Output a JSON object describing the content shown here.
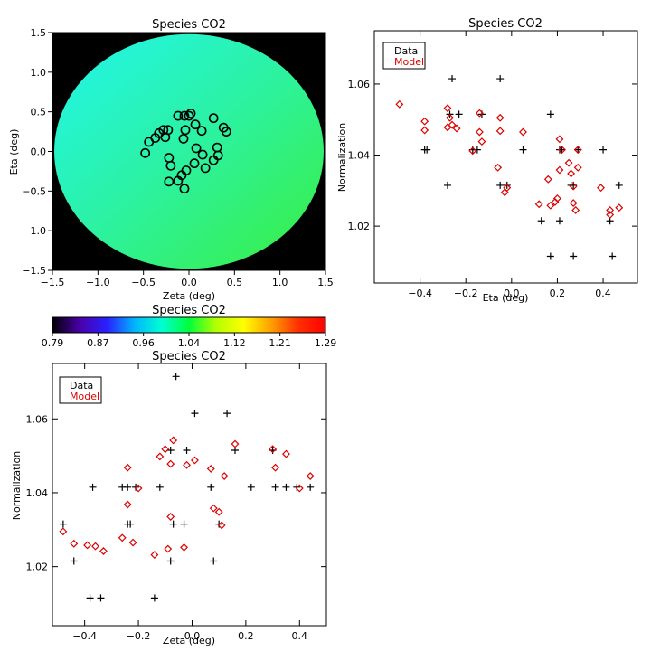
{
  "colors": {
    "data": "#000000",
    "model": "#dd0000",
    "background": "#000000"
  },
  "chart_data": [
    {
      "id": "map",
      "type": "heatmap",
      "title": "Species CO2",
      "xlabel": "Zeta (deg)",
      "ylabel": "Eta (deg)",
      "xlim": [
        -1.5,
        1.5
      ],
      "ylim": [
        -1.5,
        1.5
      ],
      "xticks": [
        "−1.5",
        "−1.0",
        "−0.5",
        "0.0",
        "0.5",
        "1.0",
        "1.5"
      ],
      "yticks": [
        "−1.5",
        "−1.0",
        "−0.5",
        "0.0",
        "0.5",
        "1.0",
        "1.5"
      ],
      "field_of_view_radius_deg": 1.48,
      "gradient_colors": [
        "#21f5ee",
        "#2cf2a0",
        "#3aee3e"
      ],
      "points": [
        {
          "x": -0.48,
          "y": -0.02
        },
        {
          "x": -0.44,
          "y": 0.12
        },
        {
          "x": -0.37,
          "y": 0.17
        },
        {
          "x": -0.33,
          "y": 0.23
        },
        {
          "x": -0.28,
          "y": 0.27
        },
        {
          "x": -0.23,
          "y": 0.27
        },
        {
          "x": -0.26,
          "y": 0.18
        },
        {
          "x": -0.22,
          "y": -0.08
        },
        {
          "x": -0.2,
          "y": -0.18
        },
        {
          "x": -0.22,
          "y": -0.38
        },
        {
          "x": -0.12,
          "y": -0.37
        },
        {
          "x": -0.05,
          "y": -0.47
        },
        {
          "x": -0.08,
          "y": -0.3
        },
        {
          "x": -0.03,
          "y": -0.24
        },
        {
          "x": 0.06,
          "y": -0.15
        },
        {
          "x": 0.08,
          "y": 0.04
        },
        {
          "x": 0.15,
          "y": -0.04
        },
        {
          "x": 0.18,
          "y": -0.21
        },
        {
          "x": 0.27,
          "y": -0.11
        },
        {
          "x": 0.32,
          "y": -0.05
        },
        {
          "x": 0.31,
          "y": 0.05
        },
        {
          "x": 0.38,
          "y": 0.3
        },
        {
          "x": 0.41,
          "y": 0.25
        },
        {
          "x": 0.27,
          "y": 0.42
        },
        {
          "x": 0.14,
          "y": 0.26
        },
        {
          "x": 0.07,
          "y": 0.34
        },
        {
          "x": -0.06,
          "y": 0.16
        },
        {
          "x": -0.04,
          "y": 0.27
        },
        {
          "x": -0.12,
          "y": 0.45
        },
        {
          "x": -0.05,
          "y": 0.45
        },
        {
          "x": 0.02,
          "y": 0.48
        },
        {
          "x": 0.0,
          "y": 0.45
        }
      ]
    },
    {
      "id": "colorbar",
      "type": "colorbar",
      "title": "Species CO2",
      "range": [
        0.79,
        1.29
      ],
      "tick_labels": [
        "0.79",
        "0.87",
        "0.96",
        "1.04",
        "1.12",
        "1.21",
        "1.29"
      ],
      "colormap": [
        "#000000",
        "#4a00a8",
        "#2a20ff",
        "#00b4ff",
        "#00ffd2",
        "#00ff3c",
        "#b4ff00",
        "#ffff00",
        "#ffa000",
        "#ff3000",
        "#ff0000"
      ]
    },
    {
      "id": "eta",
      "type": "scatter",
      "title": "Species CO2",
      "xlabel": "Eta (deg)",
      "ylabel": "Normalization",
      "xlim": [
        -0.6,
        0.55
      ],
      "ylim": [
        1.004,
        1.075
      ],
      "xticks": [
        -0.4,
        -0.2,
        0.0,
        0.2,
        0.4
      ],
      "xtick_labels": [
        "−0.4",
        "−0.2",
        "0.0",
        "0.2",
        "0.4"
      ],
      "yticks": [
        1.02,
        1.04,
        1.06
      ],
      "ytick_labels": [
        "1.02",
        "1.04",
        "1.06"
      ],
      "legend": [
        "Data",
        "Model"
      ],
      "legend_position": "top-left",
      "series": [
        {
          "name": "Data",
          "marker": "plus",
          "points": [
            {
              "x": -0.38,
              "y": 1.0415
            },
            {
              "x": -0.37,
              "y": 1.0415
            },
            {
              "x": -0.27,
              "y": 1.0515
            },
            {
              "x": -0.28,
              "y": 1.0315
            },
            {
              "x": -0.26,
              "y": 1.0615
            },
            {
              "x": -0.23,
              "y": 1.0515
            },
            {
              "x": -0.17,
              "y": 1.0415
            },
            {
              "x": -0.15,
              "y": 1.0415
            },
            {
              "x": -0.13,
              "y": 1.0515
            },
            {
              "x": -0.05,
              "y": 1.0615
            },
            {
              "x": -0.05,
              "y": 1.0315
            },
            {
              "x": -0.02,
              "y": 1.0315
            },
            {
              "x": 0.05,
              "y": 1.0415
            },
            {
              "x": 0.13,
              "y": 1.0215
            },
            {
              "x": 0.17,
              "y": 1.0515
            },
            {
              "x": 0.17,
              "y": 1.0115
            },
            {
              "x": 0.21,
              "y": 1.0415
            },
            {
              "x": 0.21,
              "y": 1.0215
            },
            {
              "x": 0.22,
              "y": 1.0415
            },
            {
              "x": 0.26,
              "y": 1.0315
            },
            {
              "x": 0.27,
              "y": 1.0315
            },
            {
              "x": 0.27,
              "y": 1.0115
            },
            {
              "x": 0.29,
              "y": 1.0415
            },
            {
              "x": 0.4,
              "y": 1.0415
            },
            {
              "x": 0.43,
              "y": 1.0215
            },
            {
              "x": 0.44,
              "y": 1.0115
            },
            {
              "x": 0.47,
              "y": 1.0315
            }
          ]
        },
        {
          "name": "Model",
          "marker": "diamond",
          "points": [
            {
              "x": -0.49,
              "y": 1.0543
            },
            {
              "x": -0.38,
              "y": 1.0495
            },
            {
              "x": -0.38,
              "y": 1.047
            },
            {
              "x": -0.28,
              "y": 1.0532
            },
            {
              "x": -0.28,
              "y": 1.0478
            },
            {
              "x": -0.27,
              "y": 1.0505
            },
            {
              "x": -0.26,
              "y": 1.0485
            },
            {
              "x": -0.24,
              "y": 1.0475
            },
            {
              "x": -0.17,
              "y": 1.0412
            },
            {
              "x": -0.14,
              "y": 1.0518
            },
            {
              "x": -0.14,
              "y": 1.0465
            },
            {
              "x": -0.13,
              "y": 1.0438
            },
            {
              "x": -0.05,
              "y": 1.0505
            },
            {
              "x": -0.05,
              "y": 1.0468
            },
            {
              "x": -0.06,
              "y": 1.0365
            },
            {
              "x": -0.03,
              "y": 1.0295
            },
            {
              "x": -0.02,
              "y": 1.0308
            },
            {
              "x": 0.05,
              "y": 1.0465
            },
            {
              "x": 0.12,
              "y": 1.0262
            },
            {
              "x": 0.16,
              "y": 1.0332
            },
            {
              "x": 0.17,
              "y": 1.0258
            },
            {
              "x": 0.19,
              "y": 1.0268
            },
            {
              "x": 0.2,
              "y": 1.0278
            },
            {
              "x": 0.21,
              "y": 1.0445
            },
            {
              "x": 0.21,
              "y": 1.0358
            },
            {
              "x": 0.22,
              "y": 1.0415
            },
            {
              "x": 0.25,
              "y": 1.0378
            },
            {
              "x": 0.26,
              "y": 1.0348
            },
            {
              "x": 0.27,
              "y": 1.0312
            },
            {
              "x": 0.27,
              "y": 1.0265
            },
            {
              "x": 0.28,
              "y": 1.0245
            },
            {
              "x": 0.29,
              "y": 1.0365
            },
            {
              "x": 0.29,
              "y": 1.0415
            },
            {
              "x": 0.39,
              "y": 1.0308
            },
            {
              "x": 0.43,
              "y": 1.0245
            },
            {
              "x": 0.43,
              "y": 1.0232
            },
            {
              "x": 0.47,
              "y": 1.0252
            }
          ]
        }
      ]
    },
    {
      "id": "zeta",
      "type": "scatter",
      "title": "Species CO2",
      "xlabel": "Zeta (deg)",
      "ylabel": "Normalization",
      "xlim": [
        -0.52,
        0.5
      ],
      "ylim": [
        1.004,
        1.075
      ],
      "xticks": [
        -0.4,
        -0.2,
        0.0,
        0.2,
        0.4
      ],
      "xtick_labels": [
        "−0.4",
        "−0.2",
        "0.0",
        "0.2",
        "0.4"
      ],
      "yticks": [
        1.02,
        1.04,
        1.06
      ],
      "ytick_labels": [
        "1.02",
        "1.04",
        "1.06"
      ],
      "legend": [
        "Data",
        "Model"
      ],
      "legend_position": "top-left",
      "series": [
        {
          "name": "Data",
          "marker": "plus",
          "points": [
            {
              "x": -0.48,
              "y": 1.0315
            },
            {
              "x": -0.44,
              "y": 1.0215
            },
            {
              "x": -0.38,
              "y": 1.0115
            },
            {
              "x": -0.34,
              "y": 1.0115
            },
            {
              "x": -0.37,
              "y": 1.0415
            },
            {
              "x": -0.26,
              "y": 1.0415
            },
            {
              "x": -0.24,
              "y": 1.0415
            },
            {
              "x": -0.24,
              "y": 1.0315
            },
            {
              "x": -0.23,
              "y": 1.0315
            },
            {
              "x": -0.21,
              "y": 1.0415
            },
            {
              "x": -0.14,
              "y": 1.0115
            },
            {
              "x": -0.12,
              "y": 1.0415
            },
            {
              "x": -0.08,
              "y": 1.0515
            },
            {
              "x": -0.08,
              "y": 1.0215
            },
            {
              "x": -0.06,
              "y": 1.0715
            },
            {
              "x": -0.07,
              "y": 1.0315
            },
            {
              "x": -0.03,
              "y": 1.0315
            },
            {
              "x": -0.02,
              "y": 1.0515
            },
            {
              "x": 0.01,
              "y": 1.0615
            },
            {
              "x": 0.07,
              "y": 1.0415
            },
            {
              "x": 0.08,
              "y": 1.0215
            },
            {
              "x": 0.1,
              "y": 1.0315
            },
            {
              "x": 0.13,
              "y": 1.0615
            },
            {
              "x": 0.16,
              "y": 1.0515
            },
            {
              "x": 0.22,
              "y": 1.0415
            },
            {
              "x": 0.3,
              "y": 1.0515
            },
            {
              "x": 0.31,
              "y": 1.0415
            },
            {
              "x": 0.35,
              "y": 1.0415
            },
            {
              "x": 0.39,
              "y": 1.0415
            },
            {
              "x": 0.44,
              "y": 1.0415
            }
          ]
        },
        {
          "name": "Model",
          "marker": "diamond",
          "points": [
            {
              "x": -0.48,
              "y": 1.0295
            },
            {
              "x": -0.44,
              "y": 1.0262
            },
            {
              "x": -0.39,
              "y": 1.0258
            },
            {
              "x": -0.36,
              "y": 1.0255
            },
            {
              "x": -0.33,
              "y": 1.0242
            },
            {
              "x": -0.26,
              "y": 1.0278
            },
            {
              "x": -0.24,
              "y": 1.0468
            },
            {
              "x": -0.24,
              "y": 1.0368
            },
            {
              "x": -0.22,
              "y": 1.0265
            },
            {
              "x": -0.2,
              "y": 1.0412
            },
            {
              "x": -0.14,
              "y": 1.0232
            },
            {
              "x": -0.12,
              "y": 1.0498
            },
            {
              "x": -0.1,
              "y": 1.0518
            },
            {
              "x": -0.08,
              "y": 1.0478
            },
            {
              "x": -0.07,
              "y": 1.0542
            },
            {
              "x": -0.08,
              "y": 1.0335
            },
            {
              "x": -0.09,
              "y": 1.0248
            },
            {
              "x": -0.03,
              "y": 1.0252
            },
            {
              "x": -0.02,
              "y": 1.0475
            },
            {
              "x": 0.01,
              "y": 1.0488
            },
            {
              "x": 0.07,
              "y": 1.0465
            },
            {
              "x": 0.08,
              "y": 1.0358
            },
            {
              "x": 0.1,
              "y": 1.0348
            },
            {
              "x": 0.11,
              "y": 1.0312
            },
            {
              "x": 0.12,
              "y": 1.0445
            },
            {
              "x": 0.16,
              "y": 1.0532
            },
            {
              "x": 0.3,
              "y": 1.0518
            },
            {
              "x": 0.31,
              "y": 1.0468
            },
            {
              "x": 0.35,
              "y": 1.0505
            },
            {
              "x": 0.4,
              "y": 1.0412
            },
            {
              "x": 0.44,
              "y": 1.0445
            }
          ]
        }
      ]
    }
  ]
}
